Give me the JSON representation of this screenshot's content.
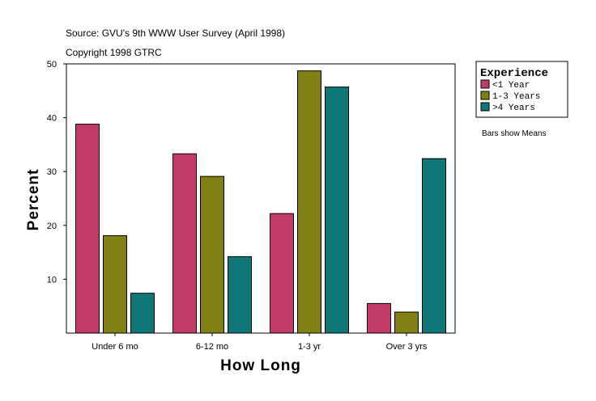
{
  "chart_data": {
    "type": "bar",
    "source_line": "Source: GVU's 9th WWW User Survey (April 1998)",
    "copyright_line": "Copyright 1998 GTRC",
    "xlabel": "How Long",
    "ylabel": "Percent",
    "ylim": [
      0,
      50
    ],
    "yticks": [
      10,
      20,
      30,
      40,
      50
    ],
    "categories": [
      "Under 6 mo",
      "6-12 mo",
      "1-3 yr",
      "Over 3 yrs"
    ],
    "series": [
      {
        "name": "<1 Year",
        "color": "#c13b67",
        "values": [
          38.8,
          33.3,
          22.2,
          5.5
        ]
      },
      {
        "name": "1-3 Years",
        "color": "#808013",
        "values": [
          18.1,
          29.1,
          48.7,
          3.9
        ]
      },
      {
        "name": ">4 Years",
        "color": "#0f7777",
        "values": [
          7.4,
          14.2,
          45.7,
          32.4
        ]
      }
    ],
    "legend": {
      "title": "Experience",
      "position": "top-right"
    },
    "note": "Bars show Means"
  }
}
